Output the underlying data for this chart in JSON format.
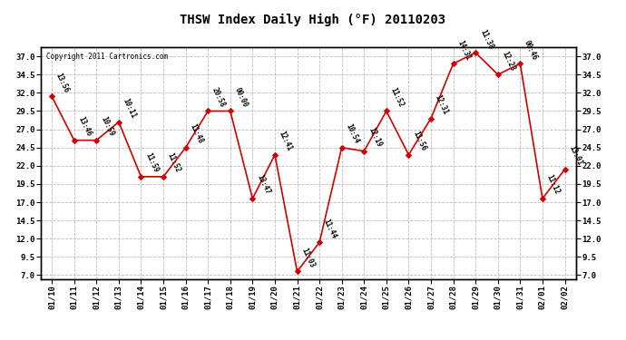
{
  "title": "THSW Index Daily High (°F) 20110203",
  "copyright": "Copyright 2011 Cartronics.com",
  "dates": [
    "01/10",
    "01/11",
    "01/12",
    "01/13",
    "01/14",
    "01/15",
    "01/16",
    "01/17",
    "01/18",
    "01/19",
    "01/20",
    "01/21",
    "01/22",
    "01/23",
    "01/24",
    "01/25",
    "01/26",
    "01/27",
    "01/28",
    "01/29",
    "01/30",
    "01/31",
    "02/01",
    "02/02"
  ],
  "values": [
    31.5,
    25.5,
    25.5,
    28.0,
    20.5,
    20.5,
    24.5,
    29.5,
    29.5,
    17.5,
    23.5,
    7.5,
    11.5,
    24.5,
    24.0,
    29.5,
    23.5,
    28.5,
    36.0,
    37.5,
    34.5,
    36.0,
    17.5,
    21.5
  ],
  "times": [
    "13:56",
    "13:46",
    "10:59",
    "10:11",
    "11:59",
    "11:52",
    "11:48",
    "20:58",
    "00:00",
    "13:47",
    "12:41",
    "11:03",
    "11:44",
    "10:54",
    "12:19",
    "11:52",
    "11:56",
    "12:31",
    "14:31",
    "11:38",
    "12:23",
    "00:46",
    "11:12",
    "13:01"
  ],
  "line_color": "#cc0000",
  "marker_color": "#cc0000",
  "bg_color": "#ffffff",
  "grid_color": "#bbbbbb",
  "ylim_min": 6.5,
  "ylim_max": 38.2,
  "yticks": [
    7.0,
    9.5,
    12.0,
    14.5,
    17.0,
    19.5,
    22.0,
    24.5,
    27.0,
    29.5,
    32.0,
    34.5,
    37.0
  ],
  "title_fontsize": 10,
  "label_fontsize": 5.5,
  "tick_fontsize": 6.5,
  "copyright_fontsize": 5.5
}
